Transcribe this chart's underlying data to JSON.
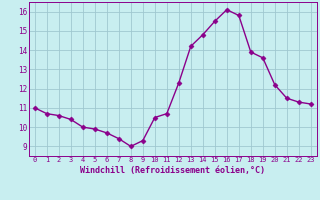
{
  "x": [
    0,
    1,
    2,
    3,
    4,
    5,
    6,
    7,
    8,
    9,
    10,
    11,
    12,
    13,
    14,
    15,
    16,
    17,
    18,
    19,
    20,
    21,
    22,
    23
  ],
  "y": [
    11.0,
    10.7,
    10.6,
    10.4,
    10.0,
    9.9,
    9.7,
    9.4,
    9.0,
    9.3,
    10.5,
    10.7,
    12.3,
    14.2,
    14.8,
    15.5,
    16.1,
    15.8,
    13.9,
    13.6,
    12.2,
    11.5,
    11.3,
    11.2
  ],
  "line_color": "#8b008b",
  "marker": "D",
  "marker_size": 2.5,
  "bg_color": "#c8eef0",
  "grid_color": "#a0c8d0",
  "xlabel": "Windchill (Refroidissement éolien,°C)",
  "xlabel_color": "#8b008b",
  "tick_color": "#8b008b",
  "spine_color": "#8b008b",
  "xlim": [
    -0.5,
    23.5
  ],
  "ylim": [
    8.5,
    16.5
  ],
  "yticks": [
    9,
    10,
    11,
    12,
    13,
    14,
    15,
    16
  ],
  "xticks": [
    0,
    1,
    2,
    3,
    4,
    5,
    6,
    7,
    8,
    9,
    10,
    11,
    12,
    13,
    14,
    15,
    16,
    17,
    18,
    19,
    20,
    21,
    22,
    23
  ]
}
